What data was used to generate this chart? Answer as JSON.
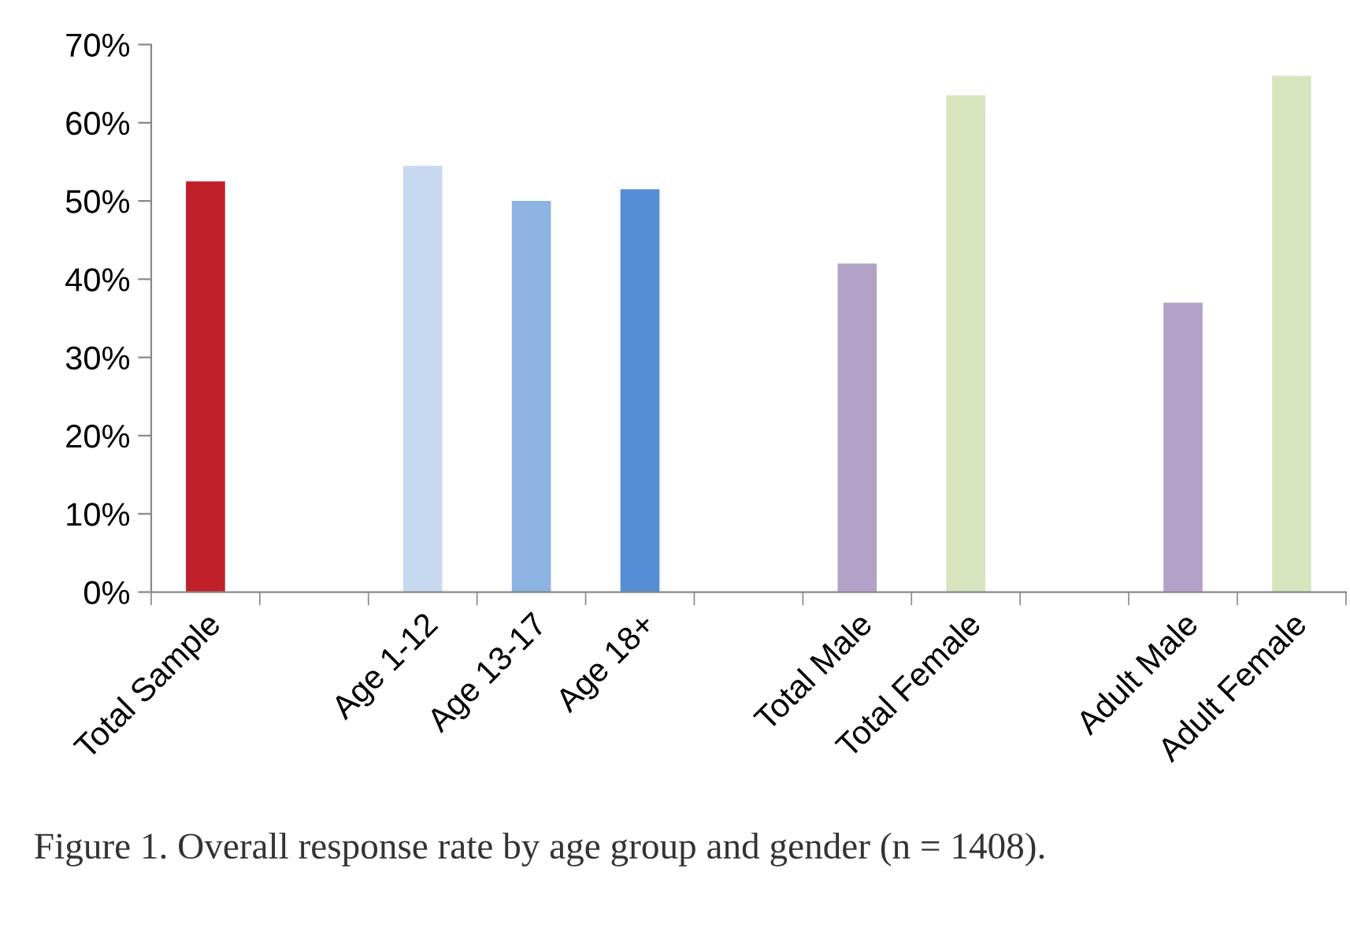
{
  "chart_data": {
    "type": "bar",
    "categories": [
      "Total Sample",
      null,
      "Age 1-12",
      "Age 13-17",
      "Age 18+",
      null,
      "Total Male",
      "Total Female",
      null,
      "Adult Male",
      "Adult Female"
    ],
    "values": [
      52.5,
      null,
      54.5,
      50,
      51.5,
      null,
      42,
      63.5,
      null,
      37,
      66
    ],
    "colors": [
      "#c0202a",
      "#c6d9f0",
      "#c6d9f0",
      "#8db3e2",
      "#558ed5",
      "#b3a2c7",
      "#b3a2c7",
      "#d7e4bd",
      "#b3a2c7",
      "#b3a2c7",
      "#d7e4bd"
    ],
    "ylim": [
      0,
      70
    ],
    "yticks": [
      {
        "value": 0,
        "label": "0%"
      },
      {
        "value": 10,
        "label": "10%"
      },
      {
        "value": 20,
        "label": "20%"
      },
      {
        "value": 30,
        "label": "30%"
      },
      {
        "value": 40,
        "label": "40%"
      },
      {
        "value": 50,
        "label": "50%"
      },
      {
        "value": 60,
        "label": "60%"
      },
      {
        "value": 70,
        "label": "70%"
      }
    ],
    "grid": false,
    "legend": false,
    "annotations": [
      "Figure 1. Overall response rate by age group and gender (n = 1408)."
    ]
  }
}
